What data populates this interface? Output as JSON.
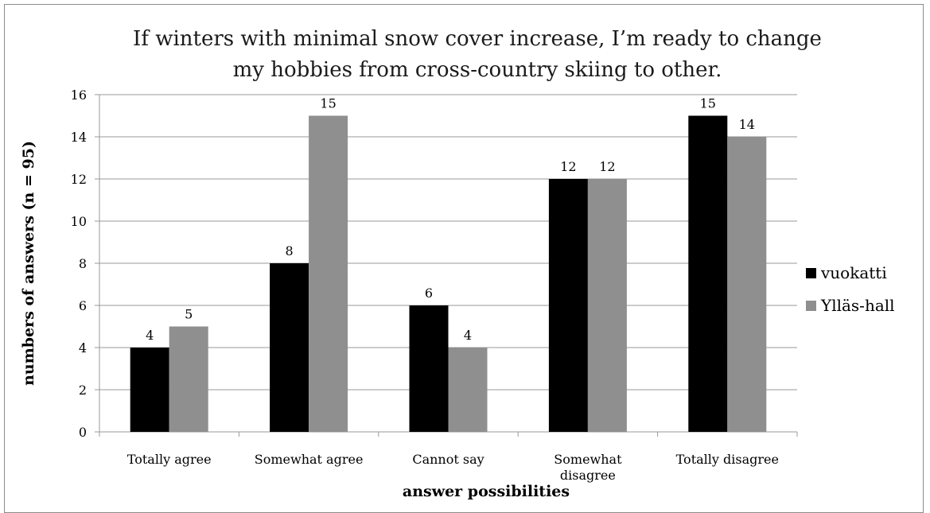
{
  "chart_data": {
    "type": "bar",
    "title": "If winters with minimal snow cover increase, I’m ready to change my hobbies from cross-country skiing to other.",
    "title_lines": [
      "If winters with minimal snow cover increase, I’m ready to change",
      "my hobbies from cross-country skiing to other."
    ],
    "xlabel": "answer possibilities",
    "ylabel": "numbers of answers (n = 95)",
    "ylim": [
      0,
      16
    ],
    "yticks": [
      0,
      2,
      4,
      6,
      8,
      10,
      12,
      14,
      16
    ],
    "grid": true,
    "legend_position": "right",
    "categories": [
      "Totally agree",
      "Somewhat agree",
      "Cannot say",
      "Somewhat disagree",
      "Totally disagree"
    ],
    "category_lines": [
      [
        "Totally agree"
      ],
      [
        "Somewhat agree"
      ],
      [
        "Cannot say"
      ],
      [
        "Somewhat",
        "disagree"
      ],
      [
        "Totally disagree"
      ]
    ],
    "series": [
      {
        "name": "vuokatti",
        "color": "#000000",
        "values": [
          4,
          8,
          6,
          12,
          15
        ]
      },
      {
        "name": "Ylläs-hall",
        "color": "#8f8f8f",
        "values": [
          5,
          15,
          4,
          12,
          14
        ]
      }
    ]
  }
}
